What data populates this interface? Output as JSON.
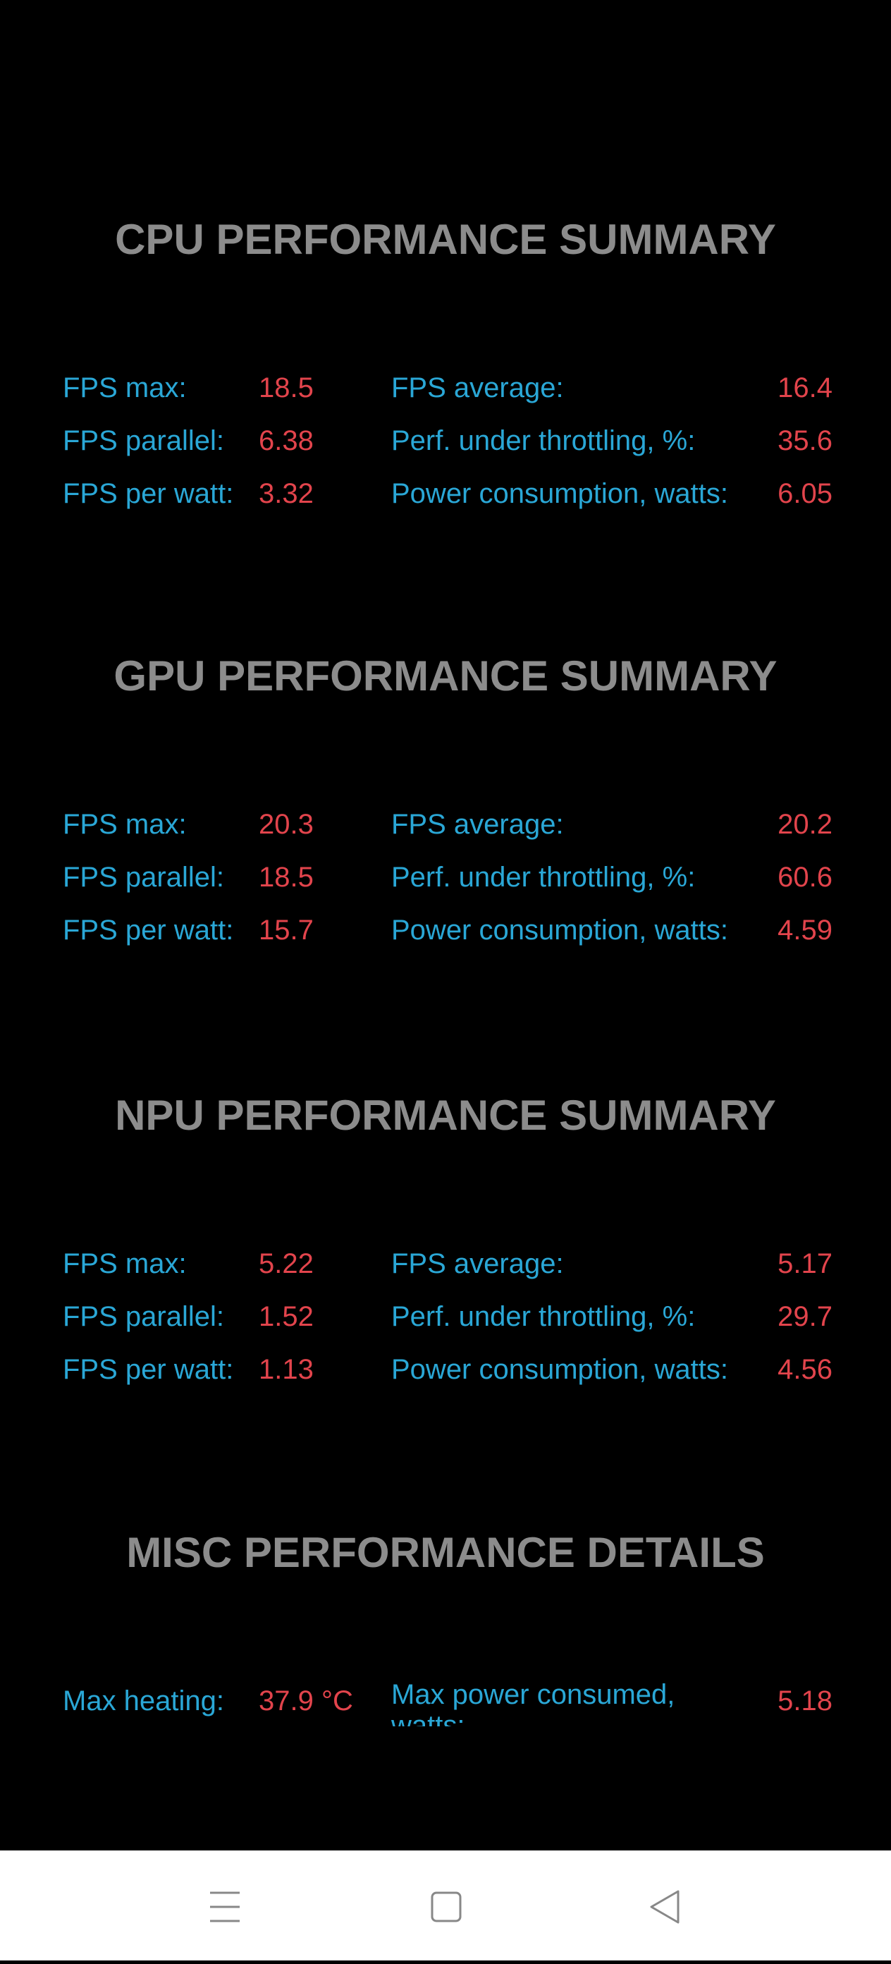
{
  "sections": [
    {
      "title": "CPU PERFORMANCE SUMMARY",
      "rows": [
        [
          "FPS max:",
          "18.5",
          "FPS average:",
          "16.4"
        ],
        [
          "FPS parallel:",
          "6.38",
          "Perf. under throttling, %:",
          "35.6"
        ],
        [
          "FPS per watt:",
          "3.32",
          "Power consumption, watts:",
          "6.05"
        ]
      ]
    },
    {
      "title": "GPU PERFORMANCE SUMMARY",
      "rows": [
        [
          "FPS max:",
          "20.3",
          "FPS average:",
          "20.2"
        ],
        [
          "FPS parallel:",
          "18.5",
          "Perf. under throttling, %:",
          "60.6"
        ],
        [
          "FPS per watt:",
          "15.7",
          "Power consumption, watts:",
          "4.59"
        ]
      ]
    },
    {
      "title": "NPU PERFORMANCE SUMMARY",
      "rows": [
        [
          "FPS max:",
          "5.22",
          "FPS average:",
          "5.17"
        ],
        [
          "FPS parallel:",
          "1.52",
          "Perf. under throttling, %:",
          "29.7"
        ],
        [
          "FPS per watt:",
          "1.13",
          "Power consumption, watts:",
          "4.56"
        ]
      ]
    },
    {
      "title": "MISC PERFORMANCE DETAILS",
      "rows": [
        [
          "Max heating:",
          "37.9 °C",
          "Max power consumed, watts:",
          "5.18"
        ]
      ]
    }
  ]
}
